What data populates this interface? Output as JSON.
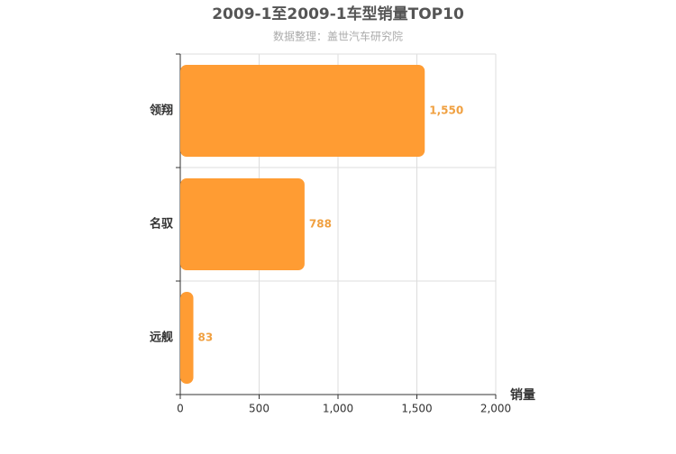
{
  "chart_data": {
    "type": "bar",
    "orientation": "horizontal",
    "title": "2009-1至2009-1车型销量TOP10",
    "subtitle": "数据整理：盖世汽车研究院",
    "x_axis_label": "销量",
    "categories": [
      "领翔",
      "名驭",
      "远舰"
    ],
    "values": [
      1550,
      788,
      83
    ],
    "value_labels": [
      "1,550",
      "788",
      "83"
    ],
    "color": "#ff9c33",
    "xlim": [
      0,
      2000
    ],
    "xticks": [
      0,
      500,
      {
        "value": 1000,
        "label": "1,000"
      },
      {
        "value": 1500,
        "label": "1,500"
      },
      {
        "value": 2000,
        "label": "2,000"
      }
    ],
    "grid": true
  }
}
